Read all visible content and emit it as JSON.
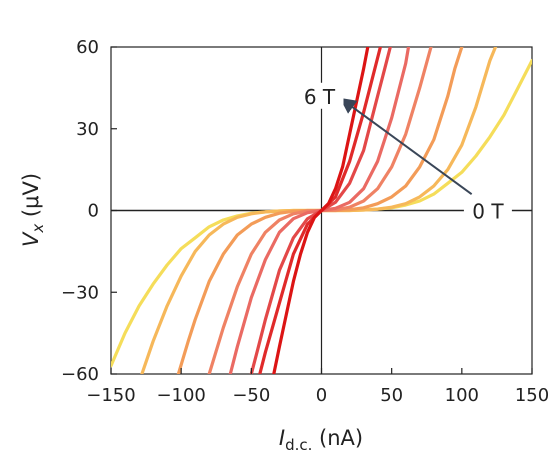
{
  "chart_data": {
    "type": "line",
    "xlabel": {
      "main": "I",
      "sub": "d.c.",
      "unit": " (nA)"
    },
    "ylabel": {
      "main": "V",
      "sub": "x",
      "unit": " (μV)"
    },
    "xlim": [
      -150,
      150
    ],
    "ylim": [
      -60,
      60
    ],
    "xticks": [
      -150,
      -100,
      -50,
      0,
      50,
      100,
      150
    ],
    "xtick_labels": [
      "−150",
      "−100",
      "−50",
      "0",
      "50",
      "100",
      "150"
    ],
    "yticks": [
      -60,
      -30,
      0,
      30,
      60
    ],
    "ytick_labels": [
      "−60",
      "−30",
      "0",
      "30",
      "60"
    ],
    "grid": false,
    "zero_lines": true,
    "annotations": {
      "high_field": {
        "text": "6 T",
        "x": 0,
        "y": 41
      },
      "low_field": {
        "text": "0 T",
        "x": 120,
        "y": 0
      },
      "arrow": {
        "from": [
          107,
          6
        ],
        "to": [
          14,
          41
        ]
      }
    },
    "series": [
      {
        "color": "#f5dd5a",
        "x": [
          -150,
          -140,
          -130,
          -120,
          -110,
          -100,
          -90,
          -80,
          -70,
          -60,
          -50,
          -40,
          -30,
          -20,
          -10,
          0,
          10,
          20,
          30,
          40,
          50,
          60,
          70,
          80,
          90,
          100,
          110,
          120,
          130,
          140,
          150
        ],
        "y": [
          -57,
          -45,
          -35,
          -27,
          -20,
          -14,
          -10,
          -6,
          -3.5,
          -2,
          -1,
          -0.5,
          -0.2,
          0,
          0,
          0,
          0,
          0,
          0.2,
          0.5,
          1,
          2,
          3.5,
          6,
          10,
          14,
          20,
          27,
          35,
          45,
          55
        ]
      },
      {
        "color": "#f6b85a",
        "x": [
          -128,
          -120,
          -110,
          -100,
          -90,
          -80,
          -70,
          -60,
          -50,
          -40,
          -30,
          -20,
          -10,
          0,
          10,
          20,
          30,
          40,
          50,
          60,
          70,
          80,
          90,
          100,
          110,
          120,
          124
        ],
        "y": [
          -60,
          -48,
          -35,
          -24,
          -15,
          -9,
          -5,
          -2.5,
          -1.2,
          -0.5,
          -0.2,
          0,
          0,
          0,
          0,
          0,
          0.2,
          0.5,
          1.2,
          2.5,
          5,
          9,
          15,
          24,
          38,
          55,
          60
        ]
      },
      {
        "color": "#f39c58",
        "x": [
          -102,
          -95,
          -90,
          -80,
          -70,
          -60,
          -50,
          -40,
          -30,
          -20,
          -10,
          0,
          10,
          20,
          30,
          40,
          50,
          60,
          70,
          80,
          90,
          95,
          100
        ],
        "y": [
          -60,
          -48,
          -40,
          -26,
          -16,
          -9,
          -5,
          -2.5,
          -1,
          -0.3,
          0,
          0,
          0,
          0.3,
          1,
          2.5,
          5,
          9,
          16,
          26,
          42,
          52,
          60
        ]
      },
      {
        "color": "#ef8264",
        "x": [
          -80,
          -70,
          -60,
          -50,
          -40,
          -30,
          -20,
          -10,
          0,
          10,
          20,
          30,
          40,
          50,
          60,
          70,
          78
        ],
        "y": [
          -60,
          -43,
          -28,
          -16,
          -8,
          -3.5,
          -1.2,
          -0.2,
          0,
          0.2,
          1.2,
          3.5,
          8,
          16,
          28,
          45,
          60
        ]
      },
      {
        "color": "#ea6a63",
        "x": [
          -65,
          -60,
          -50,
          -40,
          -30,
          -20,
          -10,
          0,
          10,
          20,
          30,
          40,
          50,
          60,
          62
        ],
        "y": [
          -60,
          -50,
          -32,
          -18,
          -8,
          -3,
          -0.8,
          0,
          0.8,
          3,
          8,
          18,
          34,
          54,
          60
        ]
      },
      {
        "color": "#e34848",
        "x": [
          -50,
          -45,
          -40,
          -30,
          -20,
          -10,
          0,
          10,
          20,
          30,
          40,
          45,
          49
        ],
        "y": [
          -60,
          -50,
          -40,
          -22,
          -10,
          -3,
          0,
          3,
          10,
          22,
          42,
          52,
          60
        ]
      },
      {
        "color": "#e02a2a",
        "x": [
          -44,
          -40,
          -35,
          -30,
          -20,
          -10,
          0,
          10,
          20,
          30,
          35,
          39,
          42
        ],
        "y": [
          -60,
          -52,
          -43,
          -34,
          -16,
          -5,
          0,
          5,
          18,
          36,
          46,
          54,
          60
        ]
      },
      {
        "color": "#dc1414",
        "x": [
          -34,
          -30,
          -25,
          -20,
          -15,
          -10,
          -5,
          0,
          5,
          10,
          15,
          20,
          25,
          30,
          33
        ],
        "y": [
          -60,
          -50,
          -38,
          -26,
          -16,
          -8,
          -2.5,
          0,
          2.5,
          8,
          16,
          28,
          40,
          52,
          60
        ]
      }
    ]
  }
}
